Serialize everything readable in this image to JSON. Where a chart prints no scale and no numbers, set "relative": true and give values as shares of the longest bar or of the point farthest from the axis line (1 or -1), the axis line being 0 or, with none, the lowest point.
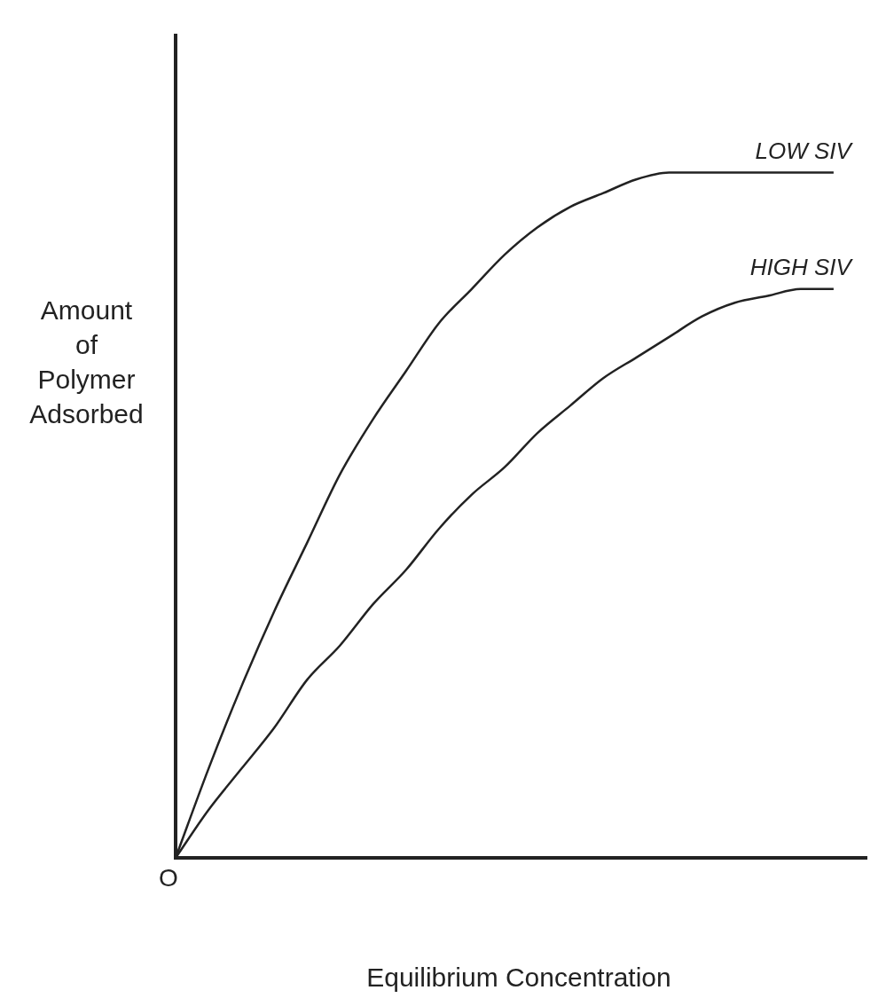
{
  "chart_data": {
    "type": "line",
    "relative": true,
    "xlabel": "Equilibrium Concentration",
    "ylabel": "Amount of Polymer Adsorbed",
    "annotations": [
      "O"
    ],
    "marker": "none",
    "line_style": "solid",
    "legend": false,
    "grid": false,
    "categories": [
      null,
      null,
      null,
      null,
      null,
      null,
      null,
      null,
      null,
      null,
      null,
      null,
      null,
      null,
      null,
      null,
      null,
      null,
      null,
      null,
      null,
      null
    ],
    "series": [
      {
        "name": "LOW SIV",
        "color": "#222222",
        "values": [
          0,
          0.13,
          0.25,
          0.36,
          0.46,
          0.56,
          0.64,
          0.71,
          0.78,
          0.83,
          0.88,
          0.92,
          0.95,
          0.97,
          0.99,
          1,
          1,
          1,
          1,
          1,
          1,
          null
        ]
      },
      {
        "name": "HIGH SIV",
        "color": "#222222",
        "values": [
          0,
          0.07,
          0.13,
          0.19,
          0.26,
          0.31,
          0.37,
          0.42,
          0.48,
          0.53,
          0.57,
          0.62,
          0.66,
          0.7,
          0.73,
          0.76,
          0.79,
          0.81,
          0.82,
          0.83,
          0.83,
          null
        ]
      }
    ]
  }
}
